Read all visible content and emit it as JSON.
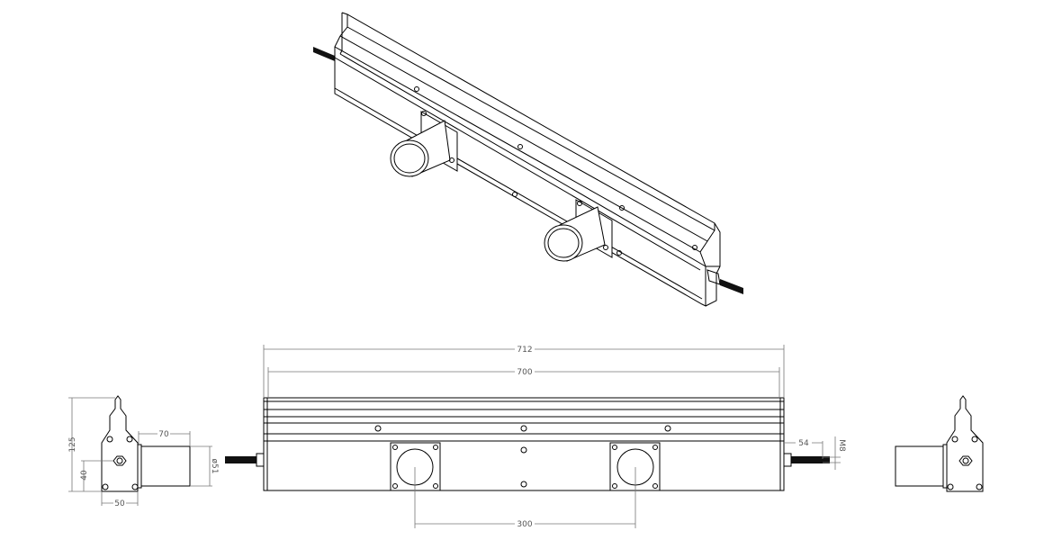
{
  "dimensions": {
    "overall_length": "712",
    "body_length": "700",
    "mount_spacing": "300",
    "height": "125",
    "axis_height": "40",
    "depth": "70",
    "width": "50",
    "cylinder_diameter": "ø51",
    "rod_length": "54",
    "thread": "M8"
  },
  "colors": {
    "line": "#000000",
    "dimension": "#777777"
  }
}
